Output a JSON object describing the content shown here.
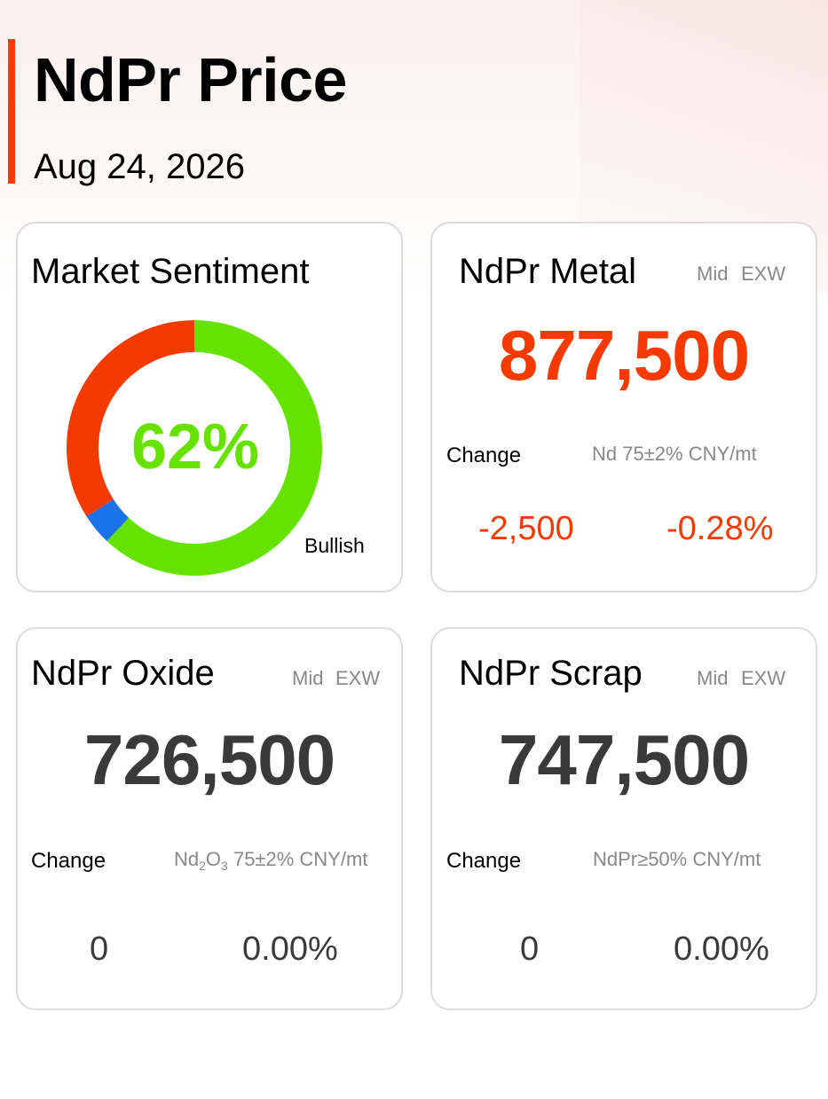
{
  "header": {
    "title": "NdPr Price",
    "date": "Aug 24, 2026"
  },
  "sentiment": {
    "title": "Market Sentiment",
    "percent_label": "62%",
    "caption": "Bullish",
    "segments": [
      {
        "name": "bullish",
        "fraction": 0.62,
        "color": "#66e200"
      },
      {
        "name": "neutral",
        "fraction": 0.04,
        "color": "#1a73e8"
      },
      {
        "name": "bearish",
        "fraction": 0.34,
        "color": "#f53a00"
      }
    ]
  },
  "metal": {
    "title": "NdPr Metal",
    "tag_mid": "Mid",
    "tag_exw": "EXW",
    "price": "877,500",
    "change_label": "Change",
    "spec": "Nd 75±2% CNY/mt",
    "change_abs": "-2,500",
    "change_pct": "-0.28%"
  },
  "oxide": {
    "title": "NdPr Oxide",
    "tag_mid": "Mid",
    "tag_exw": "EXW",
    "price": "726,500",
    "change_label": "Change",
    "spec_prefix": "Nd",
    "spec_sub1": "2",
    "spec_mid": "O",
    "spec_sub2": "3",
    "spec_suffix": " 75±2% CNY/mt",
    "change_abs": "0",
    "change_pct": "0.00%"
  },
  "scrap": {
    "title": "NdPr Scrap",
    "tag_mid": "Mid",
    "tag_exw": "EXW",
    "price": "747,500",
    "change_label": "Change",
    "spec": "NdPr≥50% CNY/mt",
    "change_abs": "0",
    "change_pct": "0.00%"
  },
  "colors": {
    "accent": "#f23c0c",
    "down": "#f53a00",
    "flat": "#3a3a3a",
    "bullish": "#66e200"
  }
}
